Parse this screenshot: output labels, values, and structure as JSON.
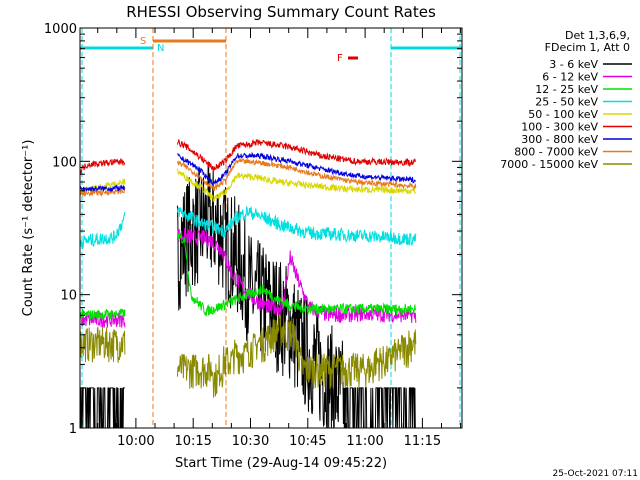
{
  "chart_data": {
    "type": "line",
    "title": "RHESSI Observing Summary Count Rates",
    "xlabel": "Start Time (29-Aug-14 09:45:22)",
    "ylabel": "Count Rate (s⁻¹ detector⁻¹)",
    "yscale": "log",
    "ylim": [
      1,
      1000
    ],
    "xlim_minutes": [
      0,
      100
    ],
    "x_ticks": [
      "10:00",
      "10:15",
      "10:30",
      "10:45",
      "11:00",
      "11:15"
    ],
    "y_ticks": [
      "1",
      "10",
      "100",
      "1000"
    ],
    "legend": {
      "placement": "right",
      "header": [
        "Det 1,3,6,9,",
        "FDecim 1, Att 0"
      ]
    },
    "flags": {
      "S": {
        "label": "S",
        "color": "#e87a1e"
      },
      "N": {
        "label": "N",
        "color": "#00d8e0"
      },
      "F": {
        "label": "F",
        "color": "#e00000"
      }
    },
    "series": [
      {
        "name": "3 - 6 keV",
        "color": "#000000"
      },
      {
        "name": "6 - 12 keV",
        "color": "#e000e0"
      },
      {
        "name": "12 - 25 keV",
        "color": "#00e000"
      },
      {
        "name": "25 - 50 keV",
        "color": "#00e0e0"
      },
      {
        "name": "50 - 100 keV",
        "color": "#d8d800"
      },
      {
        "name": "100 - 300 keV",
        "color": "#e00000"
      },
      {
        "name": "300 - 800 keV",
        "color": "#0000e0"
      },
      {
        "name": "800 - 7000 keV",
        "color": "#e87a1e"
      },
      {
        "name": "7000 - 15000 keV",
        "color": "#8a8a00"
      }
    ],
    "timestamp": "25-Oct-2021 07:11"
  }
}
